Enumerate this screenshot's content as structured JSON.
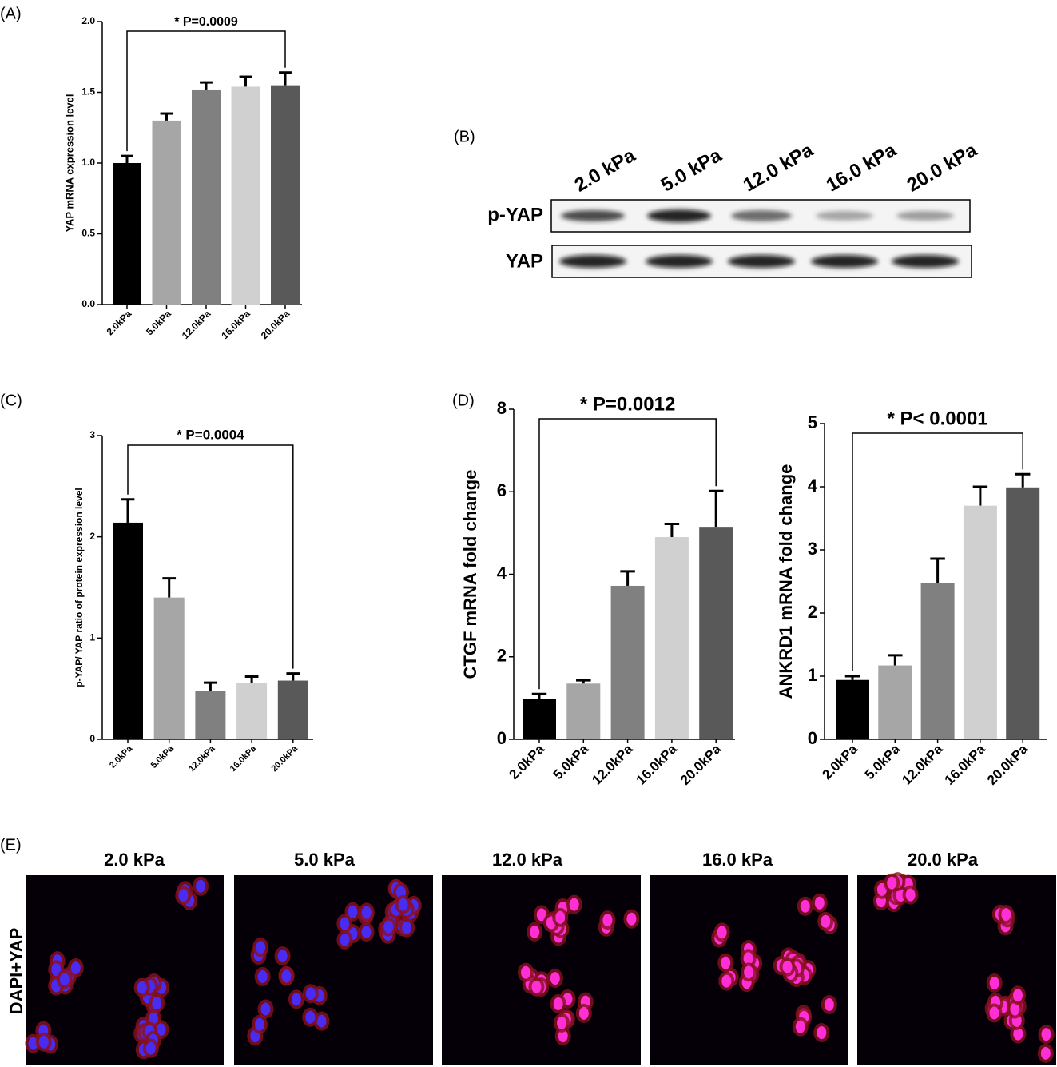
{
  "chart_data": [
    {
      "type": "bar",
      "panel": "(A)",
      "y_label": "YAP mRNA expression level",
      "categories": [
        "2.0kPa",
        "5.0kPa",
        "12.0kPa",
        "16.0kPa",
        "20.0kPa"
      ],
      "values": [
        1.0,
        1.3,
        1.52,
        1.54,
        1.55
      ],
      "errors": [
        0.05,
        0.05,
        0.05,
        0.07,
        0.09
      ],
      "colors": [
        "#000000",
        "#a6a6a6",
        "#808080",
        "#d0d0d0",
        "#595959"
      ],
      "ylim": [
        0,
        2
      ],
      "yticks": [
        {
          "value": 0,
          "label": "0.0"
        },
        0.5,
        {
          "value": 1,
          "label": "1.0"
        },
        1.5,
        {
          "value": 2,
          "label": "2.0"
        }
      ],
      "annotation": "* P=0.0009"
    },
    {
      "type": "bar",
      "panel": "(C)",
      "y_label": "p-YAP/ YAP ratio  of protein expression level",
      "categories": [
        "2.0kPa",
        "5.0kPa",
        "12.0kPa",
        "16.0kPa",
        "20.0kPa"
      ],
      "values": [
        2.14,
        1.4,
        0.48,
        0.56,
        0.58
      ],
      "errors": [
        0.23,
        0.19,
        0.08,
        0.06,
        0.07
      ],
      "colors": [
        "#000000",
        "#a6a6a6",
        "#808080",
        "#d0d0d0",
        "#595959"
      ],
      "ylim": [
        0,
        3
      ],
      "yticks": [
        0,
        1,
        2,
        3
      ],
      "annotation": "* P=0.0004"
    },
    {
      "type": "bar",
      "panel": "(D)",
      "y_label": "CTGF mRNA fold change",
      "categories": [
        "2.0kPa",
        "5.0kPa",
        "12.0kPa",
        "16.0kPa",
        "20.0kPa"
      ],
      "values": [
        0.97,
        1.35,
        3.72,
        4.9,
        5.15
      ],
      "errors": [
        0.13,
        0.08,
        0.35,
        0.32,
        0.87
      ],
      "colors": [
        "#000000",
        "#a6a6a6",
        "#808080",
        "#d0d0d0",
        "#595959"
      ],
      "ylim": [
        0,
        8
      ],
      "yticks": [
        0,
        2,
        4,
        6,
        8
      ],
      "annotation": "* P=0.0012"
    },
    {
      "type": "bar",
      "y_label": "ANKRD1 mRNA fold change",
      "categories": [
        "2.0kPa",
        "5.0kPa",
        "12.0kPa",
        "16.0kPa",
        "20.0kPa"
      ],
      "values": [
        0.94,
        1.17,
        2.48,
        3.7,
        3.99
      ],
      "errors": [
        0.06,
        0.16,
        0.38,
        0.3,
        0.21
      ],
      "colors": [
        "#000000",
        "#a6a6a6",
        "#808080",
        "#d0d0d0",
        "#595959"
      ],
      "ylim": [
        0,
        5
      ],
      "yticks": [
        0,
        1,
        2,
        3,
        4,
        5
      ],
      "annotation": "* P< 0.0001"
    }
  ],
  "blot": {
    "panel": "(B)",
    "lanes": [
      "2.0 kPa",
      "5.0 kPa",
      "12.0 kPa",
      "16.0 kPa",
      "20.0 kPa"
    ],
    "rows": [
      "p-YAP",
      "YAP"
    ]
  },
  "images": {
    "panel": "(E)",
    "stain": "DAPI+YAP",
    "titles": [
      "2.0 kPa",
      "5.0 kPa",
      "12.0 kPa",
      "16.0 kPa",
      "20.0 kPa"
    ]
  }
}
